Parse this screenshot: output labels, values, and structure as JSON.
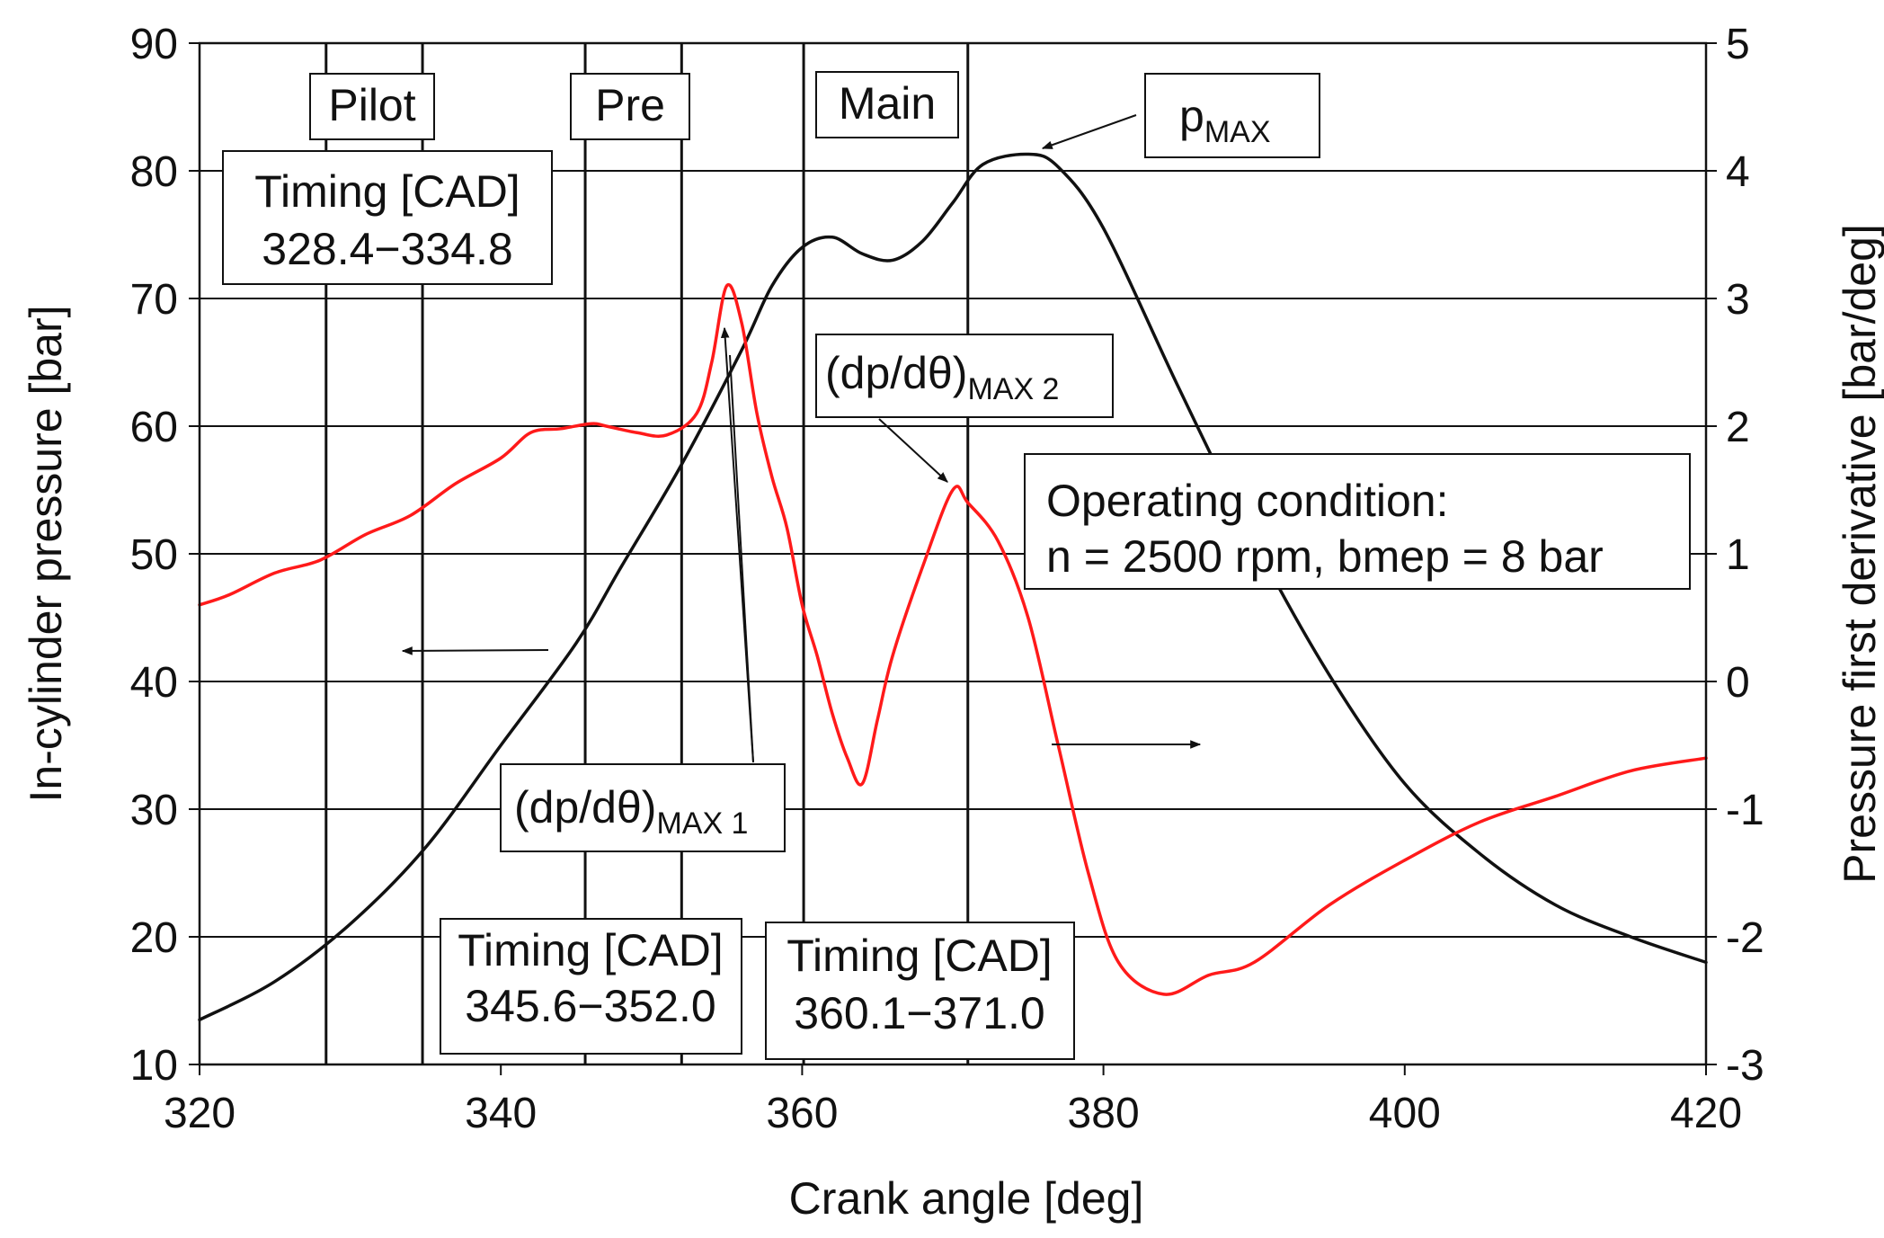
{
  "colors": {
    "pressure": "#111111",
    "derivative": "#ff1a1a",
    "grid": "#111111",
    "background": "#ffffff"
  },
  "chart_data": {
    "type": "line",
    "xlabel": "Crank angle [deg]",
    "ylabel_left": "In-cylinder pressure [bar]",
    "ylabel_right": "Pressure first derivative [bar/deg]",
    "xlim": [
      320,
      420
    ],
    "ylim_left": [
      10,
      90
    ],
    "ylim_right": [
      -3,
      5
    ],
    "x_ticks": [
      "320",
      "340",
      "360",
      "380",
      "400",
      "420"
    ],
    "y_ticks_left": [
      "10",
      "20",
      "30",
      "40",
      "50",
      "60",
      "70",
      "80",
      "90"
    ],
    "y_ticks_right": [
      "-3",
      "-2",
      "-1",
      "0",
      "1",
      "2",
      "3",
      "4",
      "5"
    ],
    "x_tick_values": [
      320,
      340,
      360,
      380,
      400,
      420
    ],
    "y_tick_values_left": [
      10,
      20,
      30,
      40,
      50,
      60,
      70,
      80,
      90
    ],
    "y_tick_values_right": [
      -3,
      -2,
      -1,
      0,
      1,
      2,
      3,
      4,
      5
    ],
    "grid": "horizontal",
    "series": [
      {
        "axis": "left",
        "x": [
          320,
          325,
          330,
          335,
          340,
          345,
          348,
          352,
          356,
          358,
          360,
          362,
          364,
          366,
          368,
          370,
          372,
          375,
          377,
          380,
          385,
          390,
          395,
          400,
          405,
          410,
          415,
          420
        ],
        "y": [
          13.5,
          16.5,
          21,
          27,
          35,
          43,
          49,
          57,
          66,
          71,
          74,
          74.8,
          73.5,
          73,
          74.5,
          77.5,
          80.5,
          81.3,
          80.3,
          75.5,
          63,
          51,
          40.5,
          32,
          26.5,
          22.5,
          20,
          18
        ]
      },
      {
        "axis": "right",
        "x": [
          320,
          322,
          325,
          328,
          331,
          334,
          337,
          340,
          342,
          344,
          346,
          347,
          349,
          351,
          353,
          354,
          355,
          356,
          357,
          358,
          359,
          360,
          361,
          362,
          363,
          364,
          365,
          366,
          368,
          370,
          371,
          373,
          375,
          377,
          379,
          381,
          384,
          387,
          390,
          395,
          400,
          405,
          410,
          415,
          420
        ],
        "y": [
          0.6,
          0.68,
          0.85,
          0.95,
          1.15,
          1.3,
          1.55,
          1.75,
          1.95,
          1.98,
          2.02,
          2.0,
          1.95,
          1.93,
          2.1,
          2.5,
          3.1,
          2.8,
          2.1,
          1.6,
          1.2,
          0.6,
          0.2,
          -0.25,
          -0.6,
          -0.8,
          -0.3,
          0.2,
          0.9,
          1.5,
          1.4,
          1.1,
          0.5,
          -0.5,
          -1.5,
          -2.2,
          -2.45,
          -2.3,
          -2.2,
          -1.75,
          -1.4,
          -1.1,
          -0.9,
          -0.7,
          -0.6
        ]
      }
    ],
    "injection_lines": [
      328.4,
      334.8,
      345.6,
      352.0,
      360.1,
      371.0
    ],
    "labels": {
      "pilot": "Pilot",
      "pre": "Pre",
      "main": "Main",
      "timing_heading": "Timing [CAD]",
      "timing_pilot": "328.4−334.8",
      "timing_pre": "345.6−352.0",
      "timing_main": "360.1−371.0",
      "pmax_main": "p",
      "pmax_sub": "MAX",
      "dpdtheta": "(dp/dθ)",
      "max1_sub": "MAX 1",
      "max2_sub": "MAX 2",
      "operating_title": "Operating condition:",
      "operating_values": "n = 2500 rpm, bmep = 8 bar"
    }
  }
}
